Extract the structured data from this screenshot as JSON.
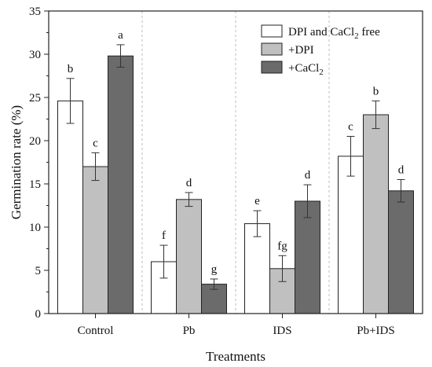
{
  "chart_data": {
    "type": "bar",
    "xlabel": "Treatments",
    "ylabel": "Germination rate (%)",
    "ylim": [
      0,
      35
    ],
    "yticks": [
      0,
      5,
      10,
      15,
      20,
      25,
      30,
      35
    ],
    "categories": [
      "Control",
      "Pb",
      "IDS",
      "Pb+IDS"
    ],
    "grid": false,
    "group_separators": "dashed vertical lines between treatment groups",
    "legend_position": "top-right",
    "series": [
      {
        "name": "DPI and CaCl2 free",
        "legend_main": "DPI and CaCl",
        "legend_sub": "2",
        "legend_suffix": " free",
        "color": "#ffffff",
        "values": [
          24.6,
          6.0,
          10.4,
          18.2
        ],
        "errors": [
          2.6,
          1.9,
          1.5,
          2.3
        ],
        "letters": [
          "b",
          "f",
          "e",
          "c"
        ]
      },
      {
        "name": "+DPI",
        "legend_main": "+DPI",
        "legend_sub": "",
        "legend_suffix": "",
        "color": "#c0c0c0",
        "values": [
          17.0,
          13.2,
          5.2,
          23.0
        ],
        "errors": [
          1.6,
          0.8,
          1.5,
          1.6
        ],
        "letters": [
          "c",
          "d",
          "fg",
          "b"
        ]
      },
      {
        "name": "+CaCl2",
        "legend_main": "+CaCl",
        "legend_sub": "2",
        "legend_suffix": "",
        "color": "#6b6b6b",
        "values": [
          29.8,
          3.4,
          13.0,
          14.2
        ],
        "errors": [
          1.3,
          0.6,
          1.9,
          1.3
        ],
        "letters": [
          "a",
          "g",
          "d",
          "d"
        ]
      }
    ]
  }
}
